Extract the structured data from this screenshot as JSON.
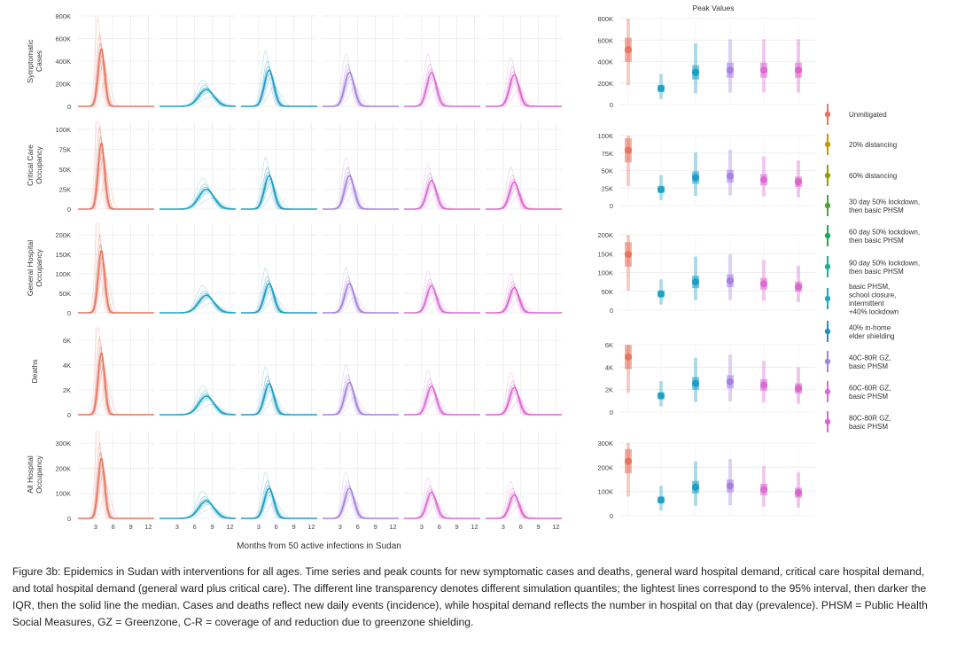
{
  "figure": {
    "caption": "Figure 3b: Epidemics in Sudan with interventions for all ages. Time series and peak counts for new symptomatic cases and deaths, general ward hospital demand, critical care hospital demand, and total hospital demand (general ward plus critical care). The different line transparency denotes different simulation quantiles; the lightest lines correspond to the 95% interval, then darker the IQR, then the solid line the median. Cases and deaths reflect new daily events (incidence), while hospital demand reflects the number in hospital on that day (prevalence). PHSM = Public Health Social Measures, GZ = Greenzone, C-R = coverage of and reduction due to greenzone shielding."
  },
  "chart_data": {
    "type": "line",
    "xlabel": "Months from 50 active infections in Sudan",
    "x_ticks": [
      3,
      6,
      9,
      12
    ],
    "xlim": [
      0,
      13
    ],
    "peak_title": "Peak Values",
    "rows": [
      {
        "id": "cases",
        "label_lines": [
          "Symptomatic",
          "Cases"
        ],
        "ylim": [
          0,
          800000
        ],
        "ticks": [
          0,
          200000,
          400000,
          600000,
          800000
        ],
        "tick_labels": [
          "0",
          "200K",
          "400K",
          "600K",
          "800K"
        ],
        "peak_ticks": [
          0,
          200000,
          400000,
          600000,
          800000
        ],
        "peak_tick_labels": [
          "0",
          "200K",
          "400K",
          "600K",
          "800K"
        ]
      },
      {
        "id": "critical",
        "label_lines": [
          "Critical Care",
          "Occupancy"
        ],
        "ylim": [
          0,
          110000
        ],
        "ticks": [
          0,
          25000,
          50000,
          75000,
          100000
        ],
        "tick_labels": [
          "0",
          "25K",
          "50K",
          "75K",
          "100K"
        ],
        "peak_ticks": [
          0,
          25000,
          50000,
          75000,
          100000
        ],
        "peak_tick_labels": [
          "0",
          "25K",
          "50K",
          "75K",
          "100K"
        ]
      },
      {
        "id": "general",
        "label_lines": [
          "General Hospital",
          "Occupancy"
        ],
        "ylim": [
          0,
          230000
        ],
        "ticks": [
          0,
          50000,
          100000,
          150000,
          200000
        ],
        "tick_labels": [
          "0",
          "50K",
          "100K",
          "150K",
          "200K"
        ],
        "peak_ticks": [
          0,
          50000,
          100000,
          150000,
          200000
        ],
        "peak_tick_labels": [
          "0",
          "50K",
          "100K",
          "150K",
          "200K"
        ]
      },
      {
        "id": "deaths",
        "label_lines": [
          "Deaths"
        ],
        "ylim": [
          0,
          7000
        ],
        "ticks": [
          0,
          2000,
          4000,
          6000
        ],
        "tick_labels": [
          "0",
          "2K",
          "4K",
          "6K"
        ],
        "peak_ticks": [
          0,
          2000,
          4000,
          6000
        ],
        "peak_tick_labels": [
          "0",
          "2K",
          "4K",
          "6K"
        ]
      },
      {
        "id": "all",
        "label_lines": [
          "All Hospital",
          "Occupancy"
        ],
        "ylim": [
          0,
          350000
        ],
        "ticks": [
          0,
          100000,
          200000,
          300000
        ],
        "tick_labels": [
          "0",
          "100K",
          "200K",
          "300K"
        ],
        "peak_ticks": [
          0,
          100000,
          200000,
          300000
        ],
        "peak_tick_labels": [
          "0",
          "100K",
          "200K",
          "300K"
        ]
      }
    ],
    "columns": [
      {
        "scenario": "Unmitigated",
        "color": "#E8735F",
        "peak_month": 4.0,
        "spread": 0.55,
        "peaks": {
          "cases": 510000,
          "critical": 83000,
          "general": 160000,
          "deaths": 5000,
          "all": 240000
        }
      },
      {
        "scenario": "basic PHSM, school closure, intermittent +40% lockdown",
        "color": "#1BA2C6",
        "peak_month": 8.0,
        "spread": 1.3,
        "peaks": {
          "cases": 150000,
          "critical": 25000,
          "general": 45000,
          "deaths": 1500,
          "all": 70000
        }
      },
      {
        "scenario": "40% in-home elder shielding",
        "color": "#1E9CC6",
        "peak_month": 4.8,
        "spread": 0.8,
        "peaks": {
          "cases": 320000,
          "critical": 42000,
          "general": 75000,
          "deaths": 2500,
          "all": 120000
        }
      },
      {
        "scenario": "40C-80R GZ, basic PHSM",
        "color": "#A682E0",
        "peak_month": 4.6,
        "spread": 0.8,
        "peaks": {
          "cases": 300000,
          "critical": 42000,
          "general": 75000,
          "deaths": 2600,
          "all": 120000
        }
      },
      {
        "scenario": "60C-60R GZ, basic PHSM",
        "color": "#DB6BD6",
        "peak_month": 4.7,
        "spread": 0.8,
        "peaks": {
          "cases": 300000,
          "critical": 36000,
          "general": 70000,
          "deaths": 2300,
          "all": 105000
        }
      },
      {
        "scenario": "80C-80R GZ, basic PHSM",
        "color": "#E062CF",
        "peak_month": 4.9,
        "spread": 0.8,
        "peaks": {
          "cases": 280000,
          "critical": 34000,
          "general": 65000,
          "deaths": 2200,
          "all": 95000
        }
      }
    ],
    "peak_points": [
      {
        "color": "#E8735F",
        "values": {
          "cases": 510000,
          "critical": 79000,
          "general": 148000,
          "deaths": 4900,
          "all": 225000
        }
      },
      {
        "color": "#1BA2C6",
        "values": {
          "cases": 150000,
          "critical": 23000,
          "general": 43000,
          "deaths": 1450,
          "all": 65000
        }
      },
      {
        "color": "#1E9CC6",
        "values": {
          "cases": 300000,
          "critical": 40000,
          "general": 75000,
          "deaths": 2550,
          "all": 118000
        }
      },
      {
        "color": "#A682E0",
        "values": {
          "cases": 320000,
          "critical": 42000,
          "general": 78000,
          "deaths": 2700,
          "all": 123000
        }
      },
      {
        "color": "#DB6BD6",
        "values": {
          "cases": 320000,
          "critical": 37000,
          "general": 70000,
          "deaths": 2400,
          "all": 108000
        }
      },
      {
        "color": "#E062CF",
        "values": {
          "cases": 320000,
          "critical": 34000,
          "general": 62000,
          "deaths": 2100,
          "all": 95000
        }
      }
    ],
    "legend": [
      {
        "label_lines": [
          "Unmitigated"
        ],
        "color": "#E8735F"
      },
      {
        "label_lines": [
          "20% distancing"
        ],
        "color": "#C8960A"
      },
      {
        "label_lines": [
          "60% distancing"
        ],
        "color": "#9B9A00"
      },
      {
        "label_lines": [
          "30 day 50% lockdown,",
          "then basic PHSM"
        ],
        "color": "#4DA33A"
      },
      {
        "label_lines": [
          "60 day 50% lockdown,",
          "then basic PHSM"
        ],
        "color": "#1CAA57"
      },
      {
        "label_lines": [
          "90 day 50% lockdown,",
          "then basic PHSM"
        ],
        "color": "#19B09A"
      },
      {
        "label_lines": [
          "basic PHSM,",
          "school closure,",
          "intermittent",
          "+40% lockdown"
        ],
        "color": "#1BA9C2"
      },
      {
        "label_lines": [
          "40% in-home",
          "elder shielding"
        ],
        "color": "#1E90C8"
      },
      {
        "label_lines": [
          "40C-80R GZ,",
          "basic PHSM"
        ],
        "color": "#A682E0"
      },
      {
        "label_lines": [
          "60C-60R GZ,",
          "basic PHSM"
        ],
        "color": "#DB6BD6"
      },
      {
        "label_lines": [
          "80C-80R GZ,",
          "basic PHSM"
        ],
        "color": "#E062CF"
      }
    ]
  }
}
